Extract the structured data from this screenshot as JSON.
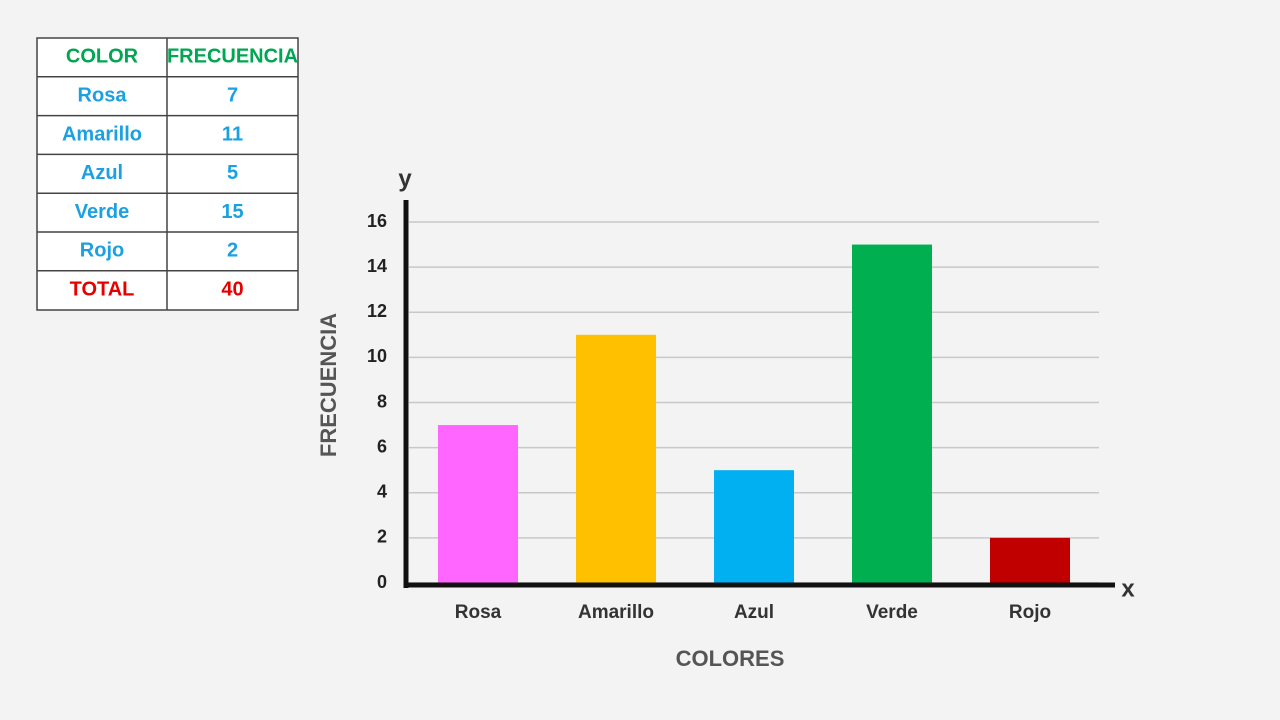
{
  "table": {
    "header": [
      "COLOR",
      "FRECUENCIA"
    ],
    "rows": [
      [
        "Rosa",
        7
      ],
      [
        "Amarillo",
        11
      ],
      [
        "Azul",
        5
      ],
      [
        "Verde",
        15
      ],
      [
        "Rojo",
        2
      ]
    ],
    "total": [
      "TOTAL",
      40
    ]
  },
  "chart_data": {
    "type": "bar",
    "categories": [
      "Rosa",
      "Amarillo",
      "Azul",
      "Verde",
      "Rojo"
    ],
    "values": [
      7,
      11,
      5,
      15,
      2
    ],
    "colors": [
      "#ff66ff",
      "#ffc000",
      "#00b0f0",
      "#00b050",
      "#c00000"
    ],
    "ylim": [
      0,
      16
    ],
    "yticks": [
      0,
      2,
      4,
      6,
      8,
      10,
      12,
      14,
      16
    ],
    "grid": true,
    "x_label": "COLORES",
    "y_label": "FRECUENCIA",
    "x_axis_letter": "x",
    "y_axis_letter": "y"
  }
}
